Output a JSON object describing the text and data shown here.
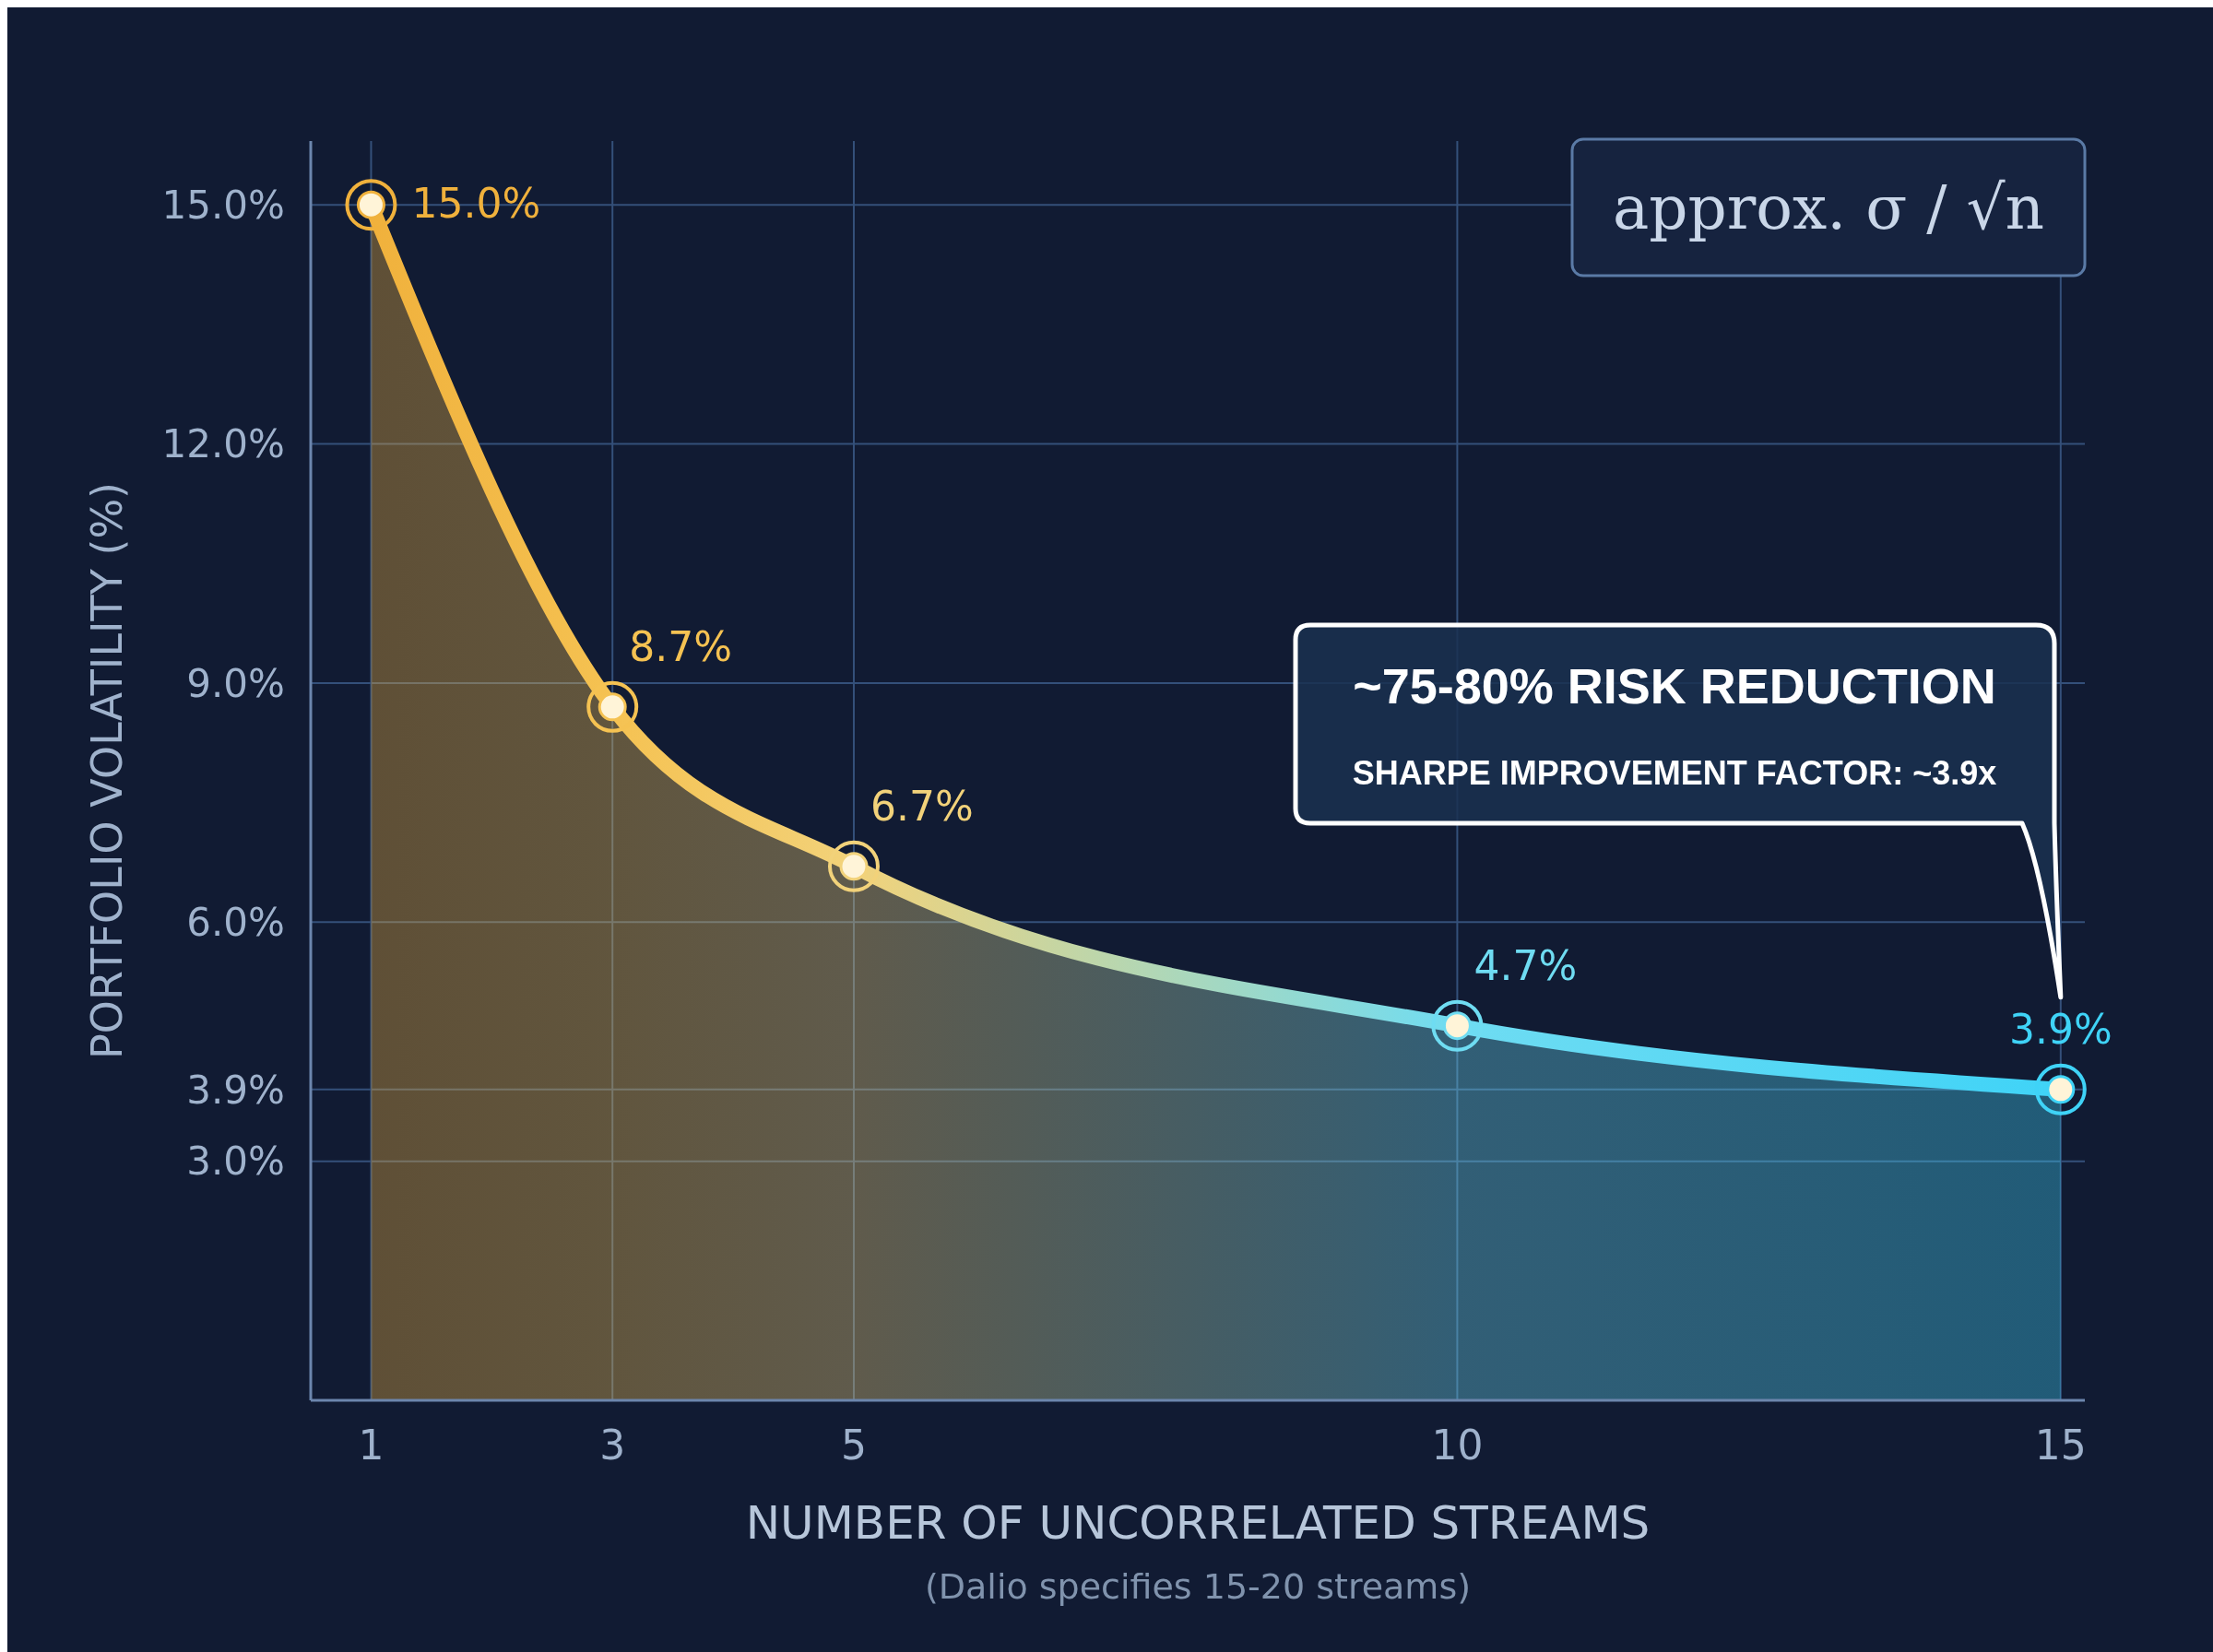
{
  "chart_data": {
    "type": "area",
    "title": null,
    "subtitle": "(Dalio specifies 15-20 streams)",
    "xlabel": "NUMBER OF UNCORRELATED STREAMS",
    "ylabel": "PORTFOLIO VOLATILITY (%)",
    "x": [
      1,
      3,
      5,
      10,
      15
    ],
    "series": [
      {
        "color": "#f0b13c",
        "values": [
          15.0,
          8.7,
          6.7,
          4.7,
          3.9
        ],
        "value_labels": [
          "15.0%",
          "8.7%",
          "6.7%",
          "4.7%",
          "3.9%"
        ],
        "colors": [
          "#f5c252",
          "#f5c252",
          "#f2d27a",
          "#6fdcf2",
          "#3fd3f7"
        ]
      }
    ],
    "marker": "circle",
    "grid": true,
    "xlim": [
      0.5,
      15.2
    ],
    "xticks": [
      1,
      3,
      5,
      10,
      15
    ],
    "ylim": [
      0,
      15.8
    ],
    "yticks": [
      {
        "value": 3,
        "label": "3.0%"
      },
      {
        "value": 3.9,
        "label": "3.9%"
      },
      {
        "value": 6,
        "label": "6.0%"
      },
      {
        "value": 9,
        "label": "9.0%"
      },
      {
        "value": 12,
        "label": "12.0%"
      },
      {
        "value": 15,
        "label": "15.0%"
      }
    ],
    "annotations": [
      "approx. σ / √n",
      "~75-80% RISK REDUCTION",
      "SHARPE IMPROVEMENT FACTOR: ~3.9x"
    ]
  }
}
